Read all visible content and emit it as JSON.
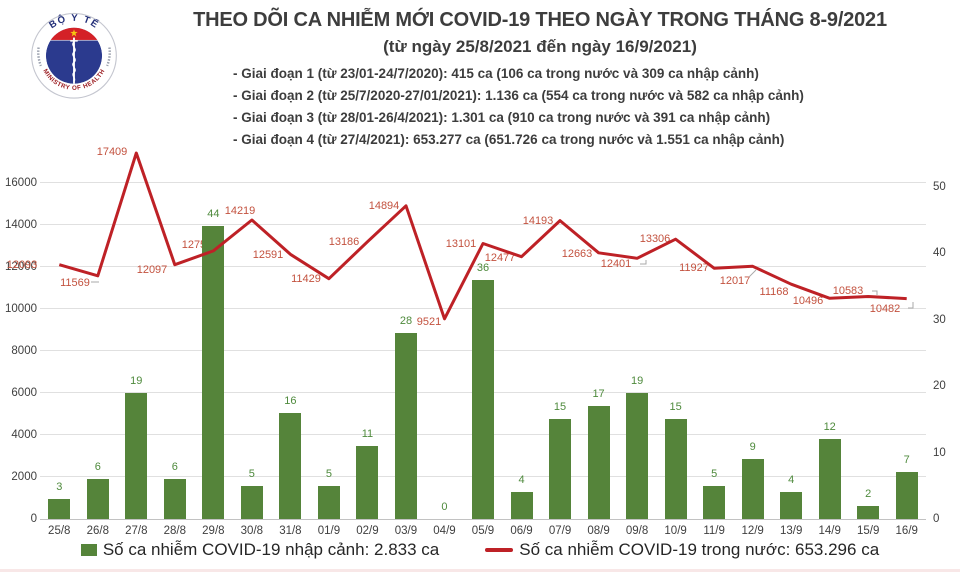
{
  "header": {
    "logo": {
      "top_text": "BỘ Y TẾ",
      "bottom_text": "MINISTRY OF HEALTH"
    },
    "title": "THEO DÕI CA NHIỄM MỚI COVID-19 THEO NGÀY TRONG THÁNG 8-9/2021",
    "subtitle": "(từ ngày 25/8/2021 đến ngày 16/9/2021)",
    "bullets": [
      "- Giai đoạn 1 (từ 23/01-24/7/2020): 415 ca (106 ca trong nước và 309 ca nhập cảnh)",
      "- Giai đoạn 2 (từ 25/7/2020-27/01/2021): 1.136 ca (554 ca trong nước và 582 ca nhập cảnh)",
      "- Giai đoạn 3 (từ 28/01-26/4/2021): 1.301 ca (910 ca trong nước và 391 ca nhập cảnh)",
      "- Giai đoạn 4 (từ 27/4/2021): 653.277 ca (651.726 ca trong nước và 1.551 ca nhập cảnh)"
    ]
  },
  "chart_data": {
    "type": "bar",
    "subtype": "combo-bar-line",
    "categories": [
      "25/8",
      "26/8",
      "27/8",
      "28/8",
      "29/8",
      "30/8",
      "31/8",
      "01/9",
      "02/9",
      "03/9",
      "04/9",
      "05/9",
      "06/9",
      "07/9",
      "08/9",
      "09/8",
      "10/9",
      "11/9",
      "12/9",
      "13/9",
      "14/9",
      "15/9",
      "16/9"
    ],
    "series": [
      {
        "name": "Số ca nhiễm COVID-19 nhập cảnh",
        "type": "bar",
        "axis": "right",
        "values": [
          3,
          6,
          19,
          6,
          44,
          5,
          16,
          5,
          11,
          28,
          0,
          36,
          4,
          15,
          17,
          19,
          15,
          5,
          9,
          4,
          12,
          2,
          7
        ]
      },
      {
        "name": "Số ca nhiễm COVID-19 trong nước",
        "type": "line",
        "axis": "left",
        "values": [
          12093,
          11569,
          17409,
          12097,
          12752,
          14219,
          12591,
          11429,
          13186,
          14894,
          9521,
          13101,
          12477,
          14193,
          12663,
          12401,
          13306,
          11927,
          12017,
          11168,
          10496,
          10583,
          10482
        ]
      }
    ],
    "left_axis": {
      "ticks": [
        0,
        2000,
        4000,
        6000,
        8000,
        10000,
        12000,
        14000,
        16000
      ],
      "max": 17550
    },
    "right_axis": {
      "ticks": [
        0,
        10,
        20,
        30,
        40,
        50
      ],
      "max": 55.5
    },
    "grid": "horizontal",
    "legend_position": "bottom",
    "colors": {
      "bar": "#55843a",
      "bar_label": "#4e8a3c",
      "line": "#be2126",
      "line_label": "#c3523f",
      "grid": "#e0e0e0",
      "axis_text": "#3f3f3f"
    },
    "legend": [
      {
        "marker": "square",
        "color": "#55843a",
        "label": "Số ca nhiễm COVID-19 nhập cảnh: 2.833 ca"
      },
      {
        "marker": "line",
        "color": "#be2126",
        "label": "Số ca nhiễm COVID-19 trong nước: 653.296 ca"
      }
    ]
  }
}
